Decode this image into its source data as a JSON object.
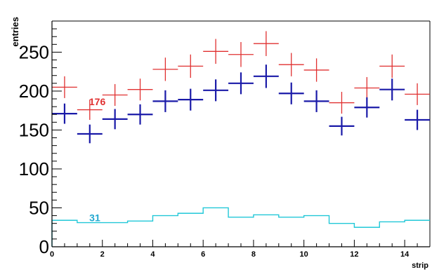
{
  "chart_data": {
    "type": "scatter",
    "xlabel": "strip",
    "ylabel": "entries",
    "xlim": [
      0,
      15
    ],
    "ylim": [
      0,
      290
    ],
    "x_ticks": [
      0,
      2,
      4,
      6,
      8,
      10,
      12,
      14
    ],
    "y_ticks": [
      0,
      50,
      100,
      150,
      200,
      250
    ],
    "grid": false,
    "series": [
      {
        "style": "crosses",
        "color": "#e03030",
        "x": [
          0.5,
          1.5,
          2.5,
          3.5,
          4.5,
          5.5,
          6.5,
          7.5,
          8.5,
          9.5,
          10.5,
          11.5,
          12.5,
          13.5,
          14.5
        ],
        "y": [
          205,
          176,
          195,
          202,
          228,
          232,
          251,
          247,
          261,
          234,
          227,
          185,
          204,
          232,
          196
        ],
        "yerr": [
          14,
          13,
          14,
          14,
          15,
          15,
          16,
          16,
          16,
          15,
          15,
          14,
          14,
          15,
          14
        ]
      },
      {
        "style": "crosses",
        "color": "#1a1aa8",
        "x": [
          0.5,
          1.5,
          2.5,
          3.5,
          4.5,
          5.5,
          6.5,
          7.5,
          8.5,
          9.5,
          10.5,
          11.5,
          12.5,
          13.5,
          14.5
        ],
        "y": [
          171,
          145,
          164,
          170,
          187,
          189,
          201,
          210,
          219,
          197,
          187,
          155,
          179,
          202,
          163
        ],
        "yerr": [
          13,
          12,
          13,
          13,
          14,
          14,
          14,
          14,
          15,
          14,
          14,
          12,
          13,
          14,
          13
        ]
      },
      {
        "style": "step",
        "color": "#22c8d8",
        "x": [
          0.5,
          1.5,
          2.5,
          3.5,
          4.5,
          5.5,
          6.5,
          7.5,
          8.5,
          9.5,
          10.5,
          11.5,
          12.5,
          13.5,
          14.5
        ],
        "y": [
          34,
          31,
          31,
          33,
          40,
          43,
          50,
          38,
          41,
          38,
          40,
          30,
          25,
          32,
          34
        ]
      }
    ],
    "annotations": [
      {
        "text": "176",
        "x": 1.8,
        "y": 182,
        "color": "#e03030"
      },
      {
        "text": "31",
        "x": 1.7,
        "y": 33,
        "color": "#22a8d0"
      }
    ]
  }
}
